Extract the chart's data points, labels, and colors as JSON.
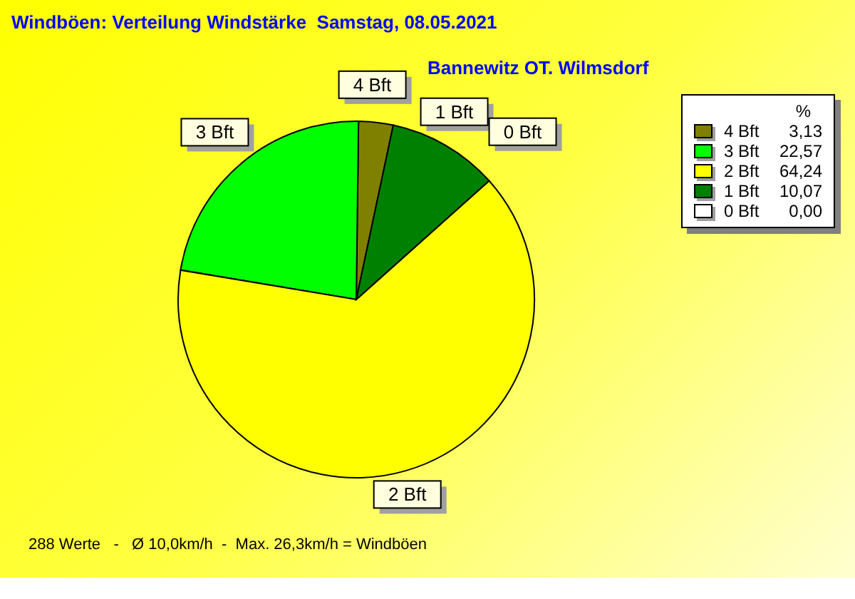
{
  "chart_data": {
    "type": "pie",
    "title": "Windböen: Verteilung Windstärke  Samstag, 08.05.2021",
    "subtitle": "Bannewitz OT. Wilmsdorf",
    "categories": [
      "4 Bft",
      "3 Bft",
      "2 Bft",
      "1 Bft",
      "0 Bft"
    ],
    "values": [
      3.13,
      22.57,
      64.24,
      10.07,
      0.0
    ],
    "value_labels": [
      "3,13",
      "22,57",
      "64,24",
      "10,07",
      "0,00"
    ],
    "colors": [
      "#808000",
      "#00ff00",
      "#ffff00",
      "#008000",
      "#ffffff"
    ],
    "legend": "top right",
    "legend_title": "%",
    "annotations": [
      "288 Werte   -   Ø 10,0km/h  -  Max. 26,3km/h = Windböen"
    ]
  }
}
